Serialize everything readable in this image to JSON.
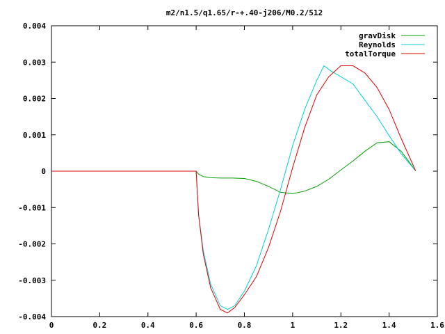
{
  "chart_data": {
    "type": "line",
    "title": "m2/n1.5/q1.65/r-+.40-j206/M0.2/512",
    "xlabel": "",
    "ylabel": "",
    "xlim": [
      0,
      1.6
    ],
    "ylim": [
      -0.004,
      0.004
    ],
    "x_ticks": [
      0,
      0.2,
      0.4,
      0.6,
      0.8,
      1,
      1.2,
      1.4,
      1.6
    ],
    "x_tick_labels": [
      "0",
      "0.2",
      "0.4",
      "0.6",
      "0.8",
      "1",
      "1.2",
      "1.4",
      "1.6"
    ],
    "y_ticks": [
      -0.004,
      -0.003,
      -0.002,
      -0.001,
      0,
      0.001,
      0.002,
      0.003,
      0.004
    ],
    "y_tick_labels": [
      "-0.004",
      "-0.003",
      "-0.002",
      "-0.001",
      "0",
      "0.001",
      "0.002",
      "0.003",
      "0.004"
    ],
    "grid": false,
    "legend_position": "top-right",
    "series": [
      {
        "name": "gravDisk",
        "color": "#00a000",
        "x": [
          0,
          0.6,
          0.61,
          0.63,
          0.66,
          0.7,
          0.75,
          0.8,
          0.85,
          0.9,
          0.95,
          1.0,
          1.05,
          1.1,
          1.15,
          1.2,
          1.25,
          1.3,
          1.35,
          1.4,
          1.45,
          1.51
        ],
        "y": [
          0,
          0,
          -8e-05,
          -0.00015,
          -0.00018,
          -0.00019,
          -0.00019,
          -0.0002,
          -0.00028,
          -0.00042,
          -0.00058,
          -0.00062,
          -0.00055,
          -0.00042,
          -0.00022,
          3e-05,
          0.00028,
          0.00055,
          0.00078,
          0.00081,
          0.00055,
          1e-05
        ]
      },
      {
        "name": "Reynolds",
        "color": "#00d0d0",
        "x": [
          0,
          0.6,
          0.61,
          0.63,
          0.66,
          0.7,
          0.73,
          0.76,
          0.8,
          0.85,
          0.9,
          0.95,
          1.0,
          1.05,
          1.1,
          1.13,
          1.16,
          1.2,
          1.25,
          1.3,
          1.35,
          1.4,
          1.45,
          1.51
        ],
        "y": [
          0,
          0,
          -0.0012,
          -0.0022,
          -0.0031,
          -0.0037,
          -0.0038,
          -0.0037,
          -0.0033,
          -0.0026,
          -0.0016,
          -0.0005,
          0.0007,
          0.0017,
          0.0025,
          0.0029,
          0.00275,
          0.0026,
          0.0024,
          0.00195,
          0.0015,
          0.00098,
          0.00048,
          1e-05
        ]
      },
      {
        "name": "totalTorque",
        "color": "#e00000",
        "x": [
          0,
          0.6,
          0.61,
          0.63,
          0.66,
          0.7,
          0.73,
          0.76,
          0.8,
          0.85,
          0.9,
          0.95,
          1.0,
          1.05,
          1.1,
          1.15,
          1.2,
          1.25,
          1.3,
          1.35,
          1.4,
          1.45,
          1.51
        ],
        "y": [
          0,
          0,
          -0.0012,
          -0.0023,
          -0.0032,
          -0.0038,
          -0.0039,
          -0.00375,
          -0.0034,
          -0.0029,
          -0.0021,
          -0.0011,
          0.0001,
          0.0012,
          0.0021,
          0.0026,
          0.0029,
          0.0029,
          0.0027,
          0.0023,
          0.0017,
          0.0009,
          1e-05
        ]
      }
    ]
  }
}
